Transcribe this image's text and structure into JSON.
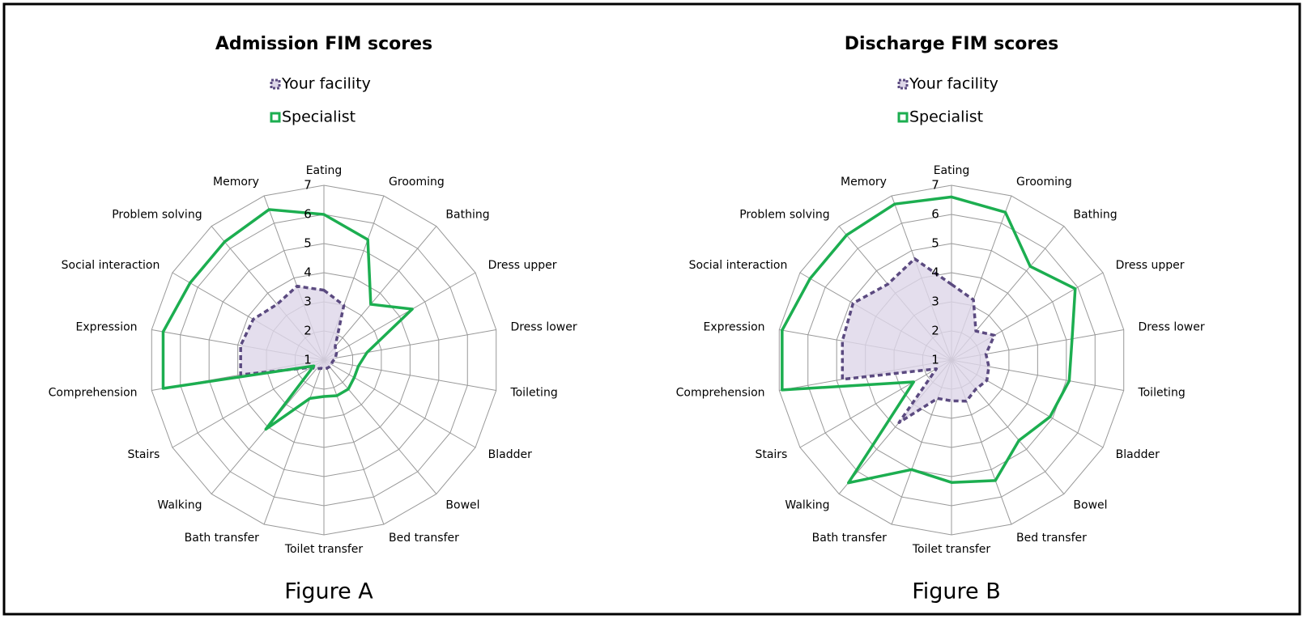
{
  "chart_data": [
    {
      "type": "radar",
      "title": "Admission FIM scores",
      "caption": "Figure A",
      "categories": [
        "Eating",
        "Grooming",
        "Bathing",
        "Dress upper",
        "Dress lower",
        "Toileting",
        "Bladder",
        "Bowel",
        "Bed transfer",
        "Toilet transfer",
        "Bath transfer",
        "Walking",
        "Stairs",
        "Comprehension",
        "Expression",
        "Social interaction",
        "Problem solving",
        "Memory"
      ],
      "ylim": [
        1,
        7
      ],
      "yticks": [
        1,
        2,
        3,
        4,
        5,
        6,
        7
      ],
      "grid": true,
      "series": [
        {
          "name": "Your facility",
          "color": "#5b4a80",
          "fill": "#ddd6e8",
          "dashed": true,
          "values": [
            3.4,
            3.0,
            1.6,
            1.5,
            1.4,
            1.3,
            1.3,
            1.3,
            1.3,
            1.3,
            1.3,
            1.4,
            1.5,
            3.9,
            3.9,
            3.8,
            3.5,
            3.7
          ]
        },
        {
          "name": "Specialist",
          "color": "#1cae50",
          "dashed": false,
          "values": [
            6.0,
            5.4,
            3.5,
            4.5,
            2.5,
            2.2,
            2.2,
            2.3,
            2.3,
            2.25,
            2.4,
            4.1,
            1.4,
            6.6,
            6.6,
            6.3,
            6.3,
            6.5
          ]
        }
      ]
    },
    {
      "type": "radar",
      "title": "Discharge FIM scores",
      "caption": "Figure B",
      "categories": [
        "Eating",
        "Grooming",
        "Bathing",
        "Dress upper",
        "Dress lower",
        "Toileting",
        "Bladder",
        "Bowel",
        "Bed transfer",
        "Toilet transfer",
        "Bath transfer",
        "Walking",
        "Stairs",
        "Comprehension",
        "Expression",
        "Social interaction",
        "Problem solving",
        "Memory"
      ],
      "ylim": [
        1,
        7
      ],
      "yticks": [
        1,
        2,
        3,
        4,
        5,
        6,
        7
      ],
      "grid": true,
      "series": [
        {
          "name": "Your facility",
          "color": "#5b4a80",
          "fill": "#ddd6e8",
          "dashed": true,
          "values": [
            3.6,
            3.2,
            2.3,
            2.7,
            2.2,
            2.3,
            2.4,
            2.3,
            2.5,
            2.4,
            2.4,
            3.8,
            1.6,
            4.8,
            4.8,
            4.9,
            4.4,
            4.7
          ]
        },
        {
          "name": "Specialist",
          "color": "#1cae50",
          "dashed": false,
          "values": [
            6.6,
            6.4,
            5.2,
            5.9,
            5.2,
            5.1,
            4.9,
            4.6,
            5.4,
            5.2,
            5.0,
            6.5,
            2.5,
            6.9,
            6.9,
            6.6,
            6.6,
            6.7
          ]
        }
      ]
    }
  ]
}
